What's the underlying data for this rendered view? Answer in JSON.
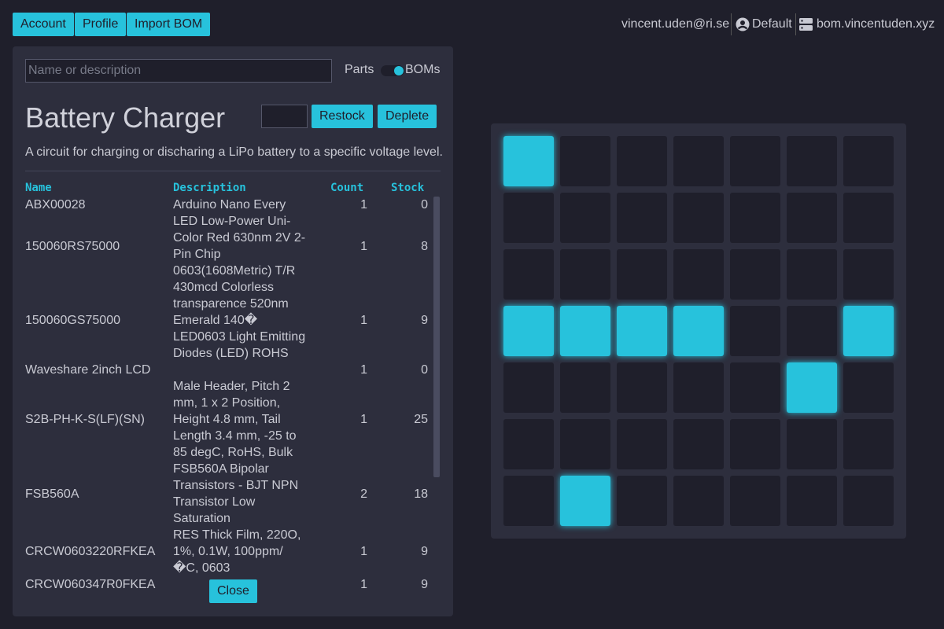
{
  "nav": {
    "buttons": [
      "Account",
      "Profile",
      "Import BOM"
    ],
    "user": "vincent.uden@ri.se",
    "profile": "Default",
    "server": "bom.vincentuden.xyz"
  },
  "search": {
    "placeholder": "Name or description",
    "toggle_left": "Parts",
    "toggle_right": "BOMs"
  },
  "bom": {
    "title": "Battery Charger",
    "restock": "Restock",
    "deplete": "Deplete",
    "description": "A circuit for charging or discharing a LiPo battery to a specific voltage level.",
    "table": {
      "headers": [
        "Name",
        "Description",
        "Count",
        "Stock"
      ],
      "rows": [
        {
          "name": "ABX00028",
          "description": "Arduino Nano Every",
          "count": 1,
          "stock": 0
        },
        {
          "name": "150060RS75000",
          "description": "LED Low-Power Uni-Color Red 630nm 2V 2-Pin Chip 0603(1608Metric) T/R",
          "count": 1,
          "stock": 8
        },
        {
          "name": "150060GS75000",
          "description": "430mcd Colorless transparence 520nm Emerald 140� LED0603 Light Emitting Diodes (LED) ROHS",
          "count": 1,
          "stock": 9
        },
        {
          "name": "Waveshare 2inch LCD",
          "count": 1,
          "stock": 0
        },
        {
          "name": "S2B-PH-K-S(LF)(SN)",
          "description": "Male Header, Pitch 2 mm, 1 x 2 Position, Height 4.8 mm, Tail Length 3.4 mm, -25 to 85 degC, RoHS, Bulk",
          "count": 1,
          "stock": 25
        },
        {
          "name": "FSB560A",
          "description": "FSB560A Bipolar Transistors - BJT NPN Transistor Low Saturation",
          "count": 2,
          "stock": 18
        },
        {
          "name": "CRCW0603220RFKEA",
          "description": "RES Thick Film, 220O, 1%, 0.1W, 100ppm/�C, 0603",
          "count": 1,
          "stock": 9
        },
        {
          "name": "CRCW060347R0FKEA",
          "count": 1,
          "stock": 9
        }
      ]
    },
    "close": "Close"
  },
  "grid": [
    [
      1,
      0,
      0,
      0,
      0,
      0,
      0
    ],
    [
      0,
      0,
      0,
      0,
      0,
      0,
      0
    ],
    [
      0,
      0,
      0,
      0,
      0,
      0,
      0
    ],
    [
      1,
      1,
      1,
      1,
      0,
      0,
      1
    ],
    [
      0,
      0,
      0,
      0,
      0,
      1,
      0
    ],
    [
      0,
      0,
      0,
      0,
      0,
      0,
      0
    ],
    [
      0,
      1,
      0,
      0,
      0,
      0,
      0
    ]
  ]
}
